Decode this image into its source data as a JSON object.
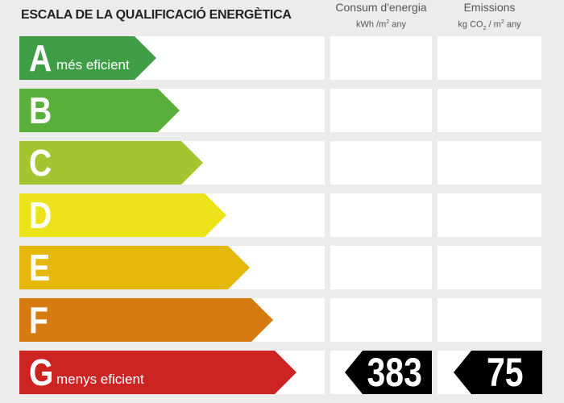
{
  "title": "ESCALA DE LA QUALIFICACIÓ ENERGÈTICA",
  "col1": {
    "title": "Consum d'energia",
    "unit_pre": "kWh /m",
    "unit_sup": "2",
    "unit_post": " any"
  },
  "col2": {
    "title": "Emissions",
    "unit_pre": "kg CO",
    "unit_sub": "2",
    "unit_mid": " / m",
    "unit_sup": "2",
    "unit_post": " any"
  },
  "rows": [
    {
      "letter": "A",
      "label": "més eficient",
      "color": "#3f9d45"
    },
    {
      "letter": "B",
      "label": "",
      "color": "#5ab03b"
    },
    {
      "letter": "C",
      "label": "",
      "color": "#a5c431"
    },
    {
      "letter": "D",
      "label": "",
      "color": "#ece31b"
    },
    {
      "letter": "E",
      "label": "",
      "color": "#e6b80d"
    },
    {
      "letter": "F",
      "label": "",
      "color": "#d57b10"
    },
    {
      "letter": "G",
      "label": "menys eficient",
      "color": "#cc2323"
    }
  ],
  "rating": {
    "letter": "G",
    "energy_consumption": "383",
    "emissions": "75"
  }
}
